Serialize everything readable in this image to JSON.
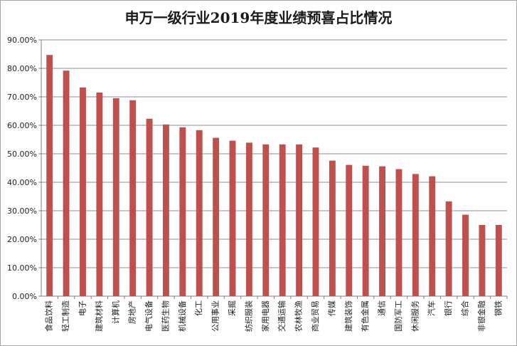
{
  "chart_data": {
    "type": "bar",
    "title": "申万一级行业2019年度业绩预喜占比情况",
    "xlabel": "",
    "ylabel": "",
    "ylim": [
      0,
      90
    ],
    "y_unit": "%",
    "grid": true,
    "legend": "none",
    "bar_color": "#c0504d",
    "y_ticks": [
      "0.00%",
      "10.00%",
      "20.00%",
      "30.00%",
      "40.00%",
      "50.00%",
      "60.00%",
      "70.00%",
      "80.00%",
      "90.00%"
    ],
    "categories": [
      "食品饮料",
      "轻工制造",
      "电子",
      "建筑材料",
      "计算机",
      "房地产",
      "电气设备",
      "医药生物",
      "机械设备",
      "化工",
      "公用事业",
      "采掘",
      "纺织服装",
      "家用电器",
      "交通运输",
      "农林牧渔",
      "商业贸易",
      "传媒",
      "建筑装饰",
      "有色金属",
      "通信",
      "国防军工",
      "休闲服务",
      "汽车",
      "银行",
      "综合",
      "非银金融",
      "钢铁"
    ],
    "values": [
      84.7,
      79.2,
      73.3,
      71.5,
      69.5,
      68.8,
      62.3,
      60.3,
      59.3,
      58.3,
      55.6,
      54.6,
      53.9,
      53.3,
      53.3,
      53.3,
      52.2,
      47.6,
      46.1,
      45.8,
      45.6,
      44.6,
      42.9,
      42.1,
      33.3,
      28.6,
      25.0,
      25.0
    ]
  }
}
